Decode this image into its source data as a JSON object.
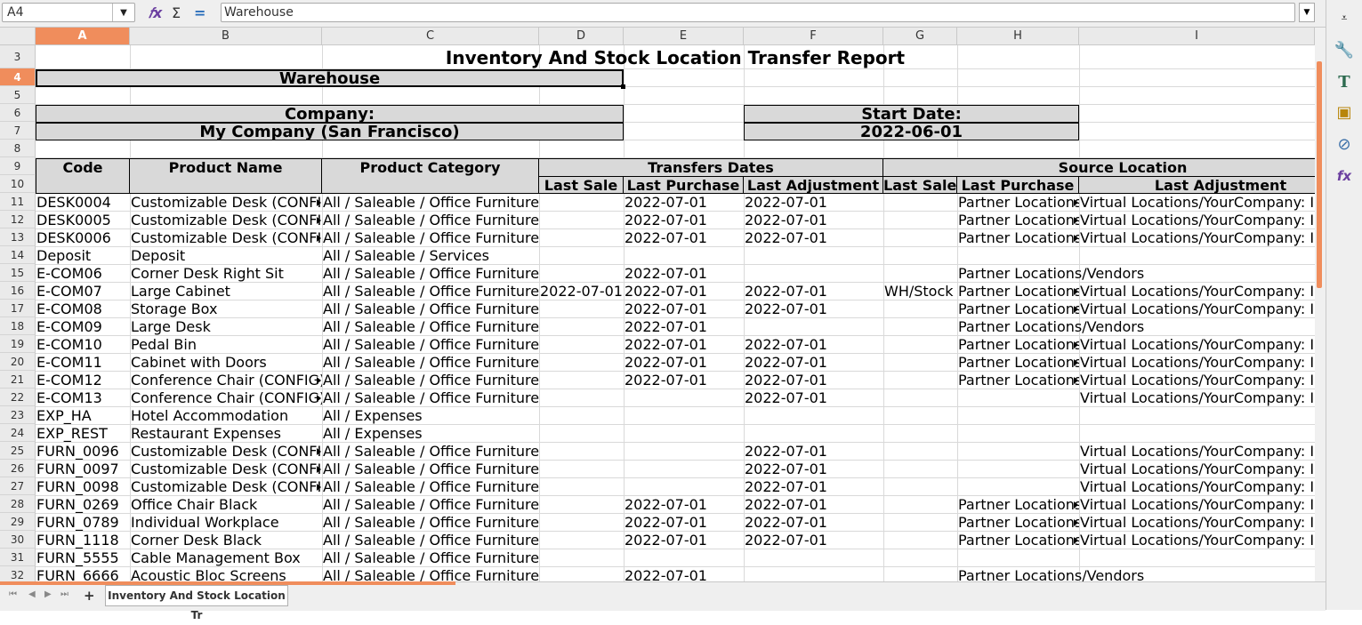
{
  "formula_bar": {
    "cell_ref": "A4",
    "content": "Warehouse"
  },
  "columns": [
    "A",
    "B",
    "C",
    "D",
    "E",
    "F",
    "G",
    "H",
    "I"
  ],
  "selected_column": "A",
  "rows": [
    "3",
    "4",
    "5",
    "6",
    "7",
    "8",
    "9",
    "10",
    "11",
    "12",
    "13",
    "14",
    "15",
    "16",
    "17",
    "18",
    "19",
    "20",
    "21",
    "22",
    "23",
    "24",
    "25",
    "26",
    "27",
    "28",
    "29",
    "30",
    "31",
    "32"
  ],
  "selected_row": "4",
  "report": {
    "title": "Inventory And Stock Location Transfer Report",
    "warehouse_label": "Warehouse",
    "company_label": "Company:",
    "company_value": "My Company (San Francisco)",
    "start_date_label": "Start Date:",
    "start_date_value": "2022-06-01"
  },
  "headers": {
    "code": "Code",
    "product_name": "Product Name",
    "product_category": "Product Category",
    "transfers_dates": "Transfers Dates",
    "source_location": "Source Location",
    "last_sale": "Last Sale",
    "last_purchase": "Last Purchase",
    "last_adjustment": "Last Adjustment",
    "src_last_sale": "Last Sale",
    "src_last_purchase": "Last Purchase",
    "src_last_adjustment": "Last Adjustment"
  },
  "table_rows": [
    [
      "DESK0004",
      "Customizable Desk (CONFIG)",
      "All / Saleable / Office Furniture",
      "",
      "2022-07-01",
      "2022-07-01",
      "",
      "Partner Locations/Vendors",
      "Virtual Locations/YourCompany: Inventory adjustment"
    ],
    [
      "DESK0005",
      "Customizable Desk (CONFIG)",
      "All / Saleable / Office Furniture",
      "",
      "2022-07-01",
      "2022-07-01",
      "",
      "Partner Locations/Vendors",
      "Virtual Locations/YourCompany: Inventory adjustment"
    ],
    [
      "DESK0006",
      "Customizable Desk (CONFIG)",
      "All / Saleable / Office Furniture",
      "",
      "2022-07-01",
      "2022-07-01",
      "",
      "Partner Locations/Vendors",
      "Virtual Locations/YourCompany: Inventory adjustment"
    ],
    [
      "Deposit",
      "Deposit",
      "All / Saleable / Services",
      "",
      "",
      "",
      "",
      "",
      ""
    ],
    [
      "E-COM06",
      "Corner Desk Right Sit",
      "All / Saleable / Office Furniture",
      "",
      "2022-07-01",
      "",
      "",
      "Partner Locations/Vendors",
      ""
    ],
    [
      "E-COM07",
      "Large Cabinet",
      "All / Saleable / Office Furniture",
      "2022-07-01",
      "2022-07-01",
      "2022-07-01",
      "WH/Stock",
      "Partner Locations/Vendors",
      "Virtual Locations/YourCompany: Inventory adjustment"
    ],
    [
      "E-COM08",
      "Storage Box",
      "All / Saleable / Office Furniture",
      "",
      "2022-07-01",
      "2022-07-01",
      "",
      "Partner Locations/Vendors",
      "Virtual Locations/YourCompany: Inventory adjustment"
    ],
    [
      "E-COM09",
      "Large Desk",
      "All / Saleable / Office Furniture",
      "",
      "2022-07-01",
      "",
      "",
      "Partner Locations/Vendors",
      ""
    ],
    [
      "E-COM10",
      "Pedal Bin",
      "All / Saleable / Office Furniture",
      "",
      "2022-07-01",
      "2022-07-01",
      "",
      "Partner Locations/Vendors",
      "Virtual Locations/YourCompany: Inventory adjustment"
    ],
    [
      "E-COM11",
      "Cabinet with Doors",
      "All / Saleable / Office Furniture",
      "",
      "2022-07-01",
      "2022-07-01",
      "",
      "Partner Locations/Vendors",
      "Virtual Locations/YourCompany: Inventory adjustment"
    ],
    [
      "E-COM12",
      "Conference Chair (CONFIG)",
      "All / Saleable / Office Furniture",
      "",
      "2022-07-01",
      "2022-07-01",
      "",
      "Partner Locations/Vendors",
      "Virtual Locations/YourCompany: Inventory adjustment"
    ],
    [
      "E-COM13",
      "Conference Chair (CONFIG)",
      "All / Saleable / Office Furniture",
      "",
      "",
      "2022-07-01",
      "",
      "",
      "Virtual Locations/YourCompany: Inventory adjustment"
    ],
    [
      "EXP_HA",
      "Hotel Accommodation",
      "All / Expenses",
      "",
      "",
      "",
      "",
      "",
      ""
    ],
    [
      "EXP_REST",
      "Restaurant Expenses",
      "All / Expenses",
      "",
      "",
      "",
      "",
      "",
      ""
    ],
    [
      "FURN_0096",
      "Customizable Desk (CONFIG)",
      "All / Saleable / Office Furniture",
      "",
      "",
      "2022-07-01",
      "",
      "",
      "Virtual Locations/YourCompany: Inventory adjustment"
    ],
    [
      "FURN_0097",
      "Customizable Desk (CONFIG)",
      "All / Saleable / Office Furniture",
      "",
      "",
      "2022-07-01",
      "",
      "",
      "Virtual Locations/YourCompany: Inventory adjustment"
    ],
    [
      "FURN_0098",
      "Customizable Desk (CONFIG)",
      "All / Saleable / Office Furniture",
      "",
      "",
      "2022-07-01",
      "",
      "",
      "Virtual Locations/YourCompany: Inventory adjustment"
    ],
    [
      "FURN_0269",
      "Office Chair Black",
      "All / Saleable / Office Furniture",
      "",
      "2022-07-01",
      "2022-07-01",
      "",
      "Partner Locations/Vendors",
      "Virtual Locations/YourCompany: Inventory adjustment"
    ],
    [
      "FURN_0789",
      "Individual Workplace",
      "All / Saleable / Office Furniture",
      "",
      "2022-07-01",
      "2022-07-01",
      "",
      "Partner Locations/Vendors",
      "Virtual Locations/YourCompany: Inventory adjustment"
    ],
    [
      "FURN_1118",
      "Corner Desk Black",
      "All / Saleable / Office Furniture",
      "",
      "2022-07-01",
      "2022-07-01",
      "",
      "Partner Locations/Vendors",
      "Virtual Locations/YourCompany: Inventory adjustment"
    ],
    [
      "FURN_5555",
      "Cable Management Box",
      "All / Saleable / Office Furniture",
      "",
      "",
      "",
      "",
      "",
      ""
    ],
    [
      "FURN_6666",
      "Acoustic Bloc Screens",
      "All / Saleable / Office Furniture",
      "",
      "2022-07-01",
      "",
      "",
      "Partner Locations/Vendors",
      ""
    ]
  ],
  "sheet_tab": "Inventory And Stock Location Tr",
  "colors": {
    "accent": "#f08d5c",
    "header_fill": "#d9d9d9"
  }
}
